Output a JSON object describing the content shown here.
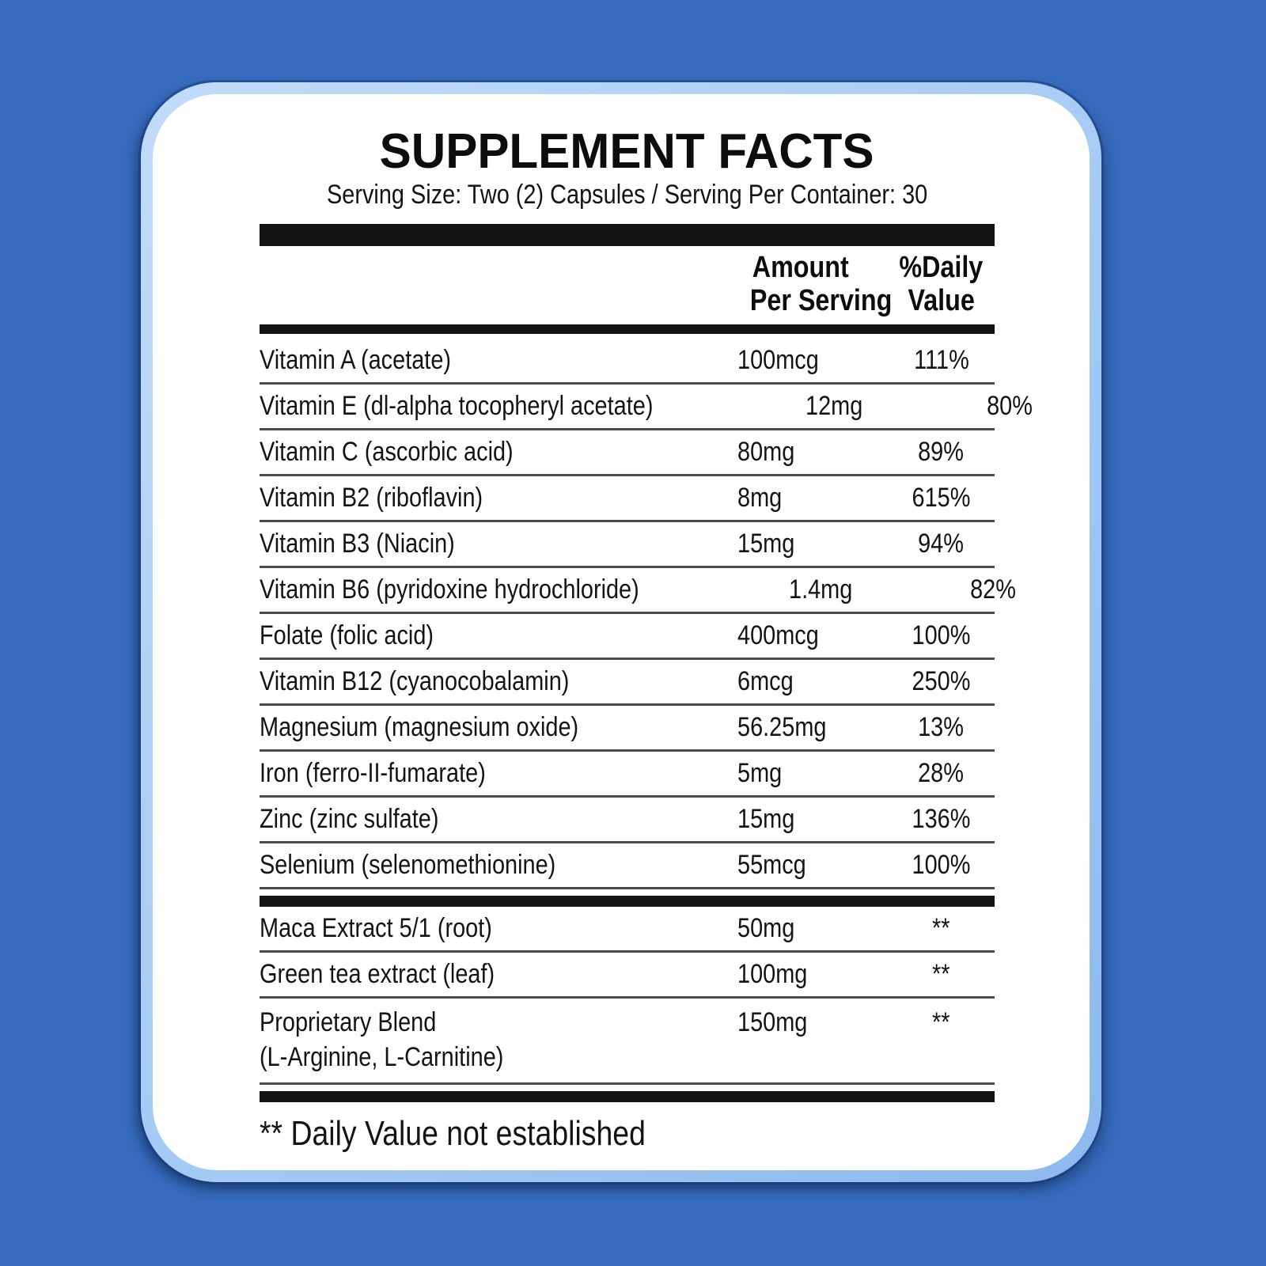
{
  "colors": {
    "background": "#376cbd",
    "card_ring": "#a9cdf6",
    "card_bg": "#ffffff",
    "bar": "#141414",
    "separator": "#4c4c4c",
    "text": "#141414"
  },
  "header": {
    "title": "SUPPLEMENT FACTS",
    "serving_line": "Serving Size: Two (2) Capsules / Serving Per Container: 30"
  },
  "table": {
    "header": {
      "amount": [
        "Amount",
        "Per Serving"
      ],
      "daily": [
        "%Daily",
        "Value"
      ]
    },
    "sections": [
      {
        "rows": [
          {
            "name": "Vitamin A (acetate)",
            "amount": "100mcg",
            "daily": "111%"
          },
          {
            "name": "Vitamin E (dl-alpha tocopheryl acetate)",
            "amount": "12mg",
            "daily": "80%"
          },
          {
            "name": "Vitamin C (ascorbic acid)",
            "amount": "80mg",
            "daily": "89%"
          },
          {
            "name": "Vitamin B2 (riboflavin)",
            "amount": "8mg",
            "daily": "615%"
          },
          {
            "name": "Vitamin B3 (Niacin)",
            "amount": "15mg",
            "daily": "94%"
          },
          {
            "name": "Vitamin B6 (pyridoxine hydrochloride)",
            "amount": "1.4mg",
            "daily": "82%"
          },
          {
            "name": "Folate (folic acid)",
            "amount": "400mcg",
            "daily": "100%"
          },
          {
            "name": "Vitamin B12 (cyanocobalamin)",
            "amount": "6mcg",
            "daily": "250%"
          },
          {
            "name": "Magnesium (magnesium oxide)",
            "amount": "56.25mg",
            "daily": "13%"
          },
          {
            "name": "Iron (ferro-II-fumarate)",
            "amount": "5mg",
            "daily": "28%"
          },
          {
            "name": "Zinc (zinc sulfate)",
            "amount": "15mg",
            "daily": "136%"
          },
          {
            "name": "Selenium (selenomethionine)",
            "amount": "55mcg",
            "daily": "100%"
          }
        ]
      },
      {
        "rows": [
          {
            "name": "Maca Extract 5/1 (root)",
            "amount": "50mg",
            "daily": "**"
          },
          {
            "name": "Green tea extract (leaf)",
            "amount": "100mg",
            "daily": "**"
          },
          {
            "name": "Proprietary Blend",
            "name2": "(L-Arginine, L-Carnitine)",
            "amount": "150mg",
            "daily": "**"
          }
        ]
      }
    ]
  },
  "footnote": "** Daily Value not established"
}
